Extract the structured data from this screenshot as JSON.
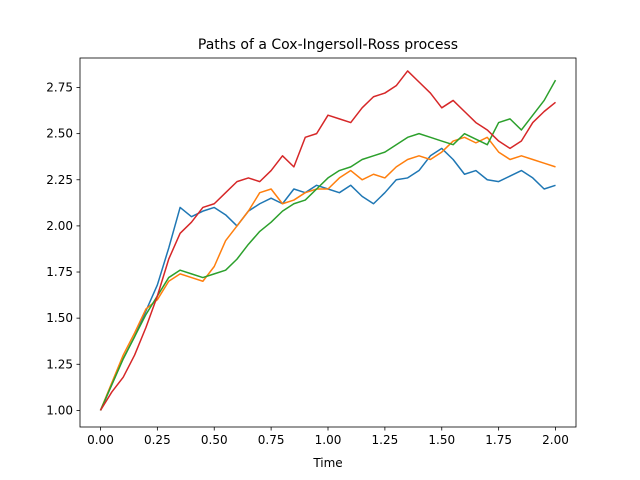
{
  "chart_data": {
    "type": "line",
    "title": "Paths of a Cox-Ingersoll-Ross process",
    "xlabel": "Time",
    "ylabel": "",
    "xlim": [
      -0.09,
      2.09
    ],
    "ylim": [
      0.91,
      2.91
    ],
    "grid": false,
    "legend": "none",
    "x_ticks": [
      {
        "value": 0.0,
        "label": "0.00"
      },
      {
        "value": 0.25,
        "label": "0.25"
      },
      {
        "value": 0.5,
        "label": "0.50"
      },
      {
        "value": 0.75,
        "label": "0.75"
      },
      {
        "value": 1.0,
        "label": "1.00"
      },
      {
        "value": 1.25,
        "label": "1.25"
      },
      {
        "value": 1.5,
        "label": "1.50"
      },
      {
        "value": 1.75,
        "label": "1.75"
      },
      {
        "value": 2.0,
        "label": "2.00"
      }
    ],
    "y_ticks": [
      {
        "value": 1.0,
        "label": "1.00"
      },
      {
        "value": 1.25,
        "label": "1.25"
      },
      {
        "value": 1.5,
        "label": "1.50"
      },
      {
        "value": 1.75,
        "label": "1.75"
      },
      {
        "value": 2.0,
        "label": "2.00"
      },
      {
        "value": 2.25,
        "label": "2.25"
      },
      {
        "value": 2.5,
        "label": "2.50"
      },
      {
        "value": 2.75,
        "label": "2.75"
      }
    ],
    "series": [
      {
        "color": "#1f77b4",
        "x": [
          0.0,
          0.05,
          0.1,
          0.15,
          0.2,
          0.25,
          0.3,
          0.35,
          0.4,
          0.45,
          0.5,
          0.55,
          0.6,
          0.65,
          0.7,
          0.75,
          0.8,
          0.85,
          0.9,
          0.95,
          1.0,
          1.05,
          1.1,
          1.15,
          1.2,
          1.25,
          1.3,
          1.35,
          1.4,
          1.45,
          1.5,
          1.55,
          1.6,
          1.65,
          1.7,
          1.75,
          1.8,
          1.85,
          1.9,
          1.95,
          2.0
        ],
        "y": [
          1.0,
          1.14,
          1.28,
          1.4,
          1.54,
          1.68,
          1.88,
          2.1,
          2.05,
          2.08,
          2.1,
          2.06,
          2.0,
          2.08,
          2.12,
          2.15,
          2.12,
          2.2,
          2.18,
          2.22,
          2.2,
          2.18,
          2.22,
          2.16,
          2.12,
          2.18,
          2.25,
          2.26,
          2.3,
          2.38,
          2.42,
          2.36,
          2.28,
          2.3,
          2.25,
          2.24,
          2.27,
          2.3,
          2.26,
          2.2,
          2.22
        ]
      },
      {
        "color": "#ff7f0e",
        "x": [
          0.0,
          0.05,
          0.1,
          0.15,
          0.2,
          0.25,
          0.3,
          0.35,
          0.4,
          0.45,
          0.5,
          0.55,
          0.6,
          0.65,
          0.7,
          0.75,
          0.8,
          0.85,
          0.9,
          0.95,
          1.0,
          1.05,
          1.1,
          1.15,
          1.2,
          1.25,
          1.3,
          1.35,
          1.4,
          1.45,
          1.5,
          1.55,
          1.6,
          1.65,
          1.7,
          1.75,
          1.8,
          1.85,
          1.9,
          1.95,
          2.0
        ],
        "y": [
          1.0,
          1.15,
          1.3,
          1.42,
          1.55,
          1.6,
          1.7,
          1.74,
          1.72,
          1.7,
          1.78,
          1.92,
          2.0,
          2.08,
          2.18,
          2.2,
          2.12,
          2.14,
          2.18,
          2.2,
          2.2,
          2.26,
          2.3,
          2.25,
          2.28,
          2.26,
          2.32,
          2.36,
          2.38,
          2.36,
          2.4,
          2.46,
          2.48,
          2.45,
          2.48,
          2.4,
          2.36,
          2.38,
          2.36,
          2.34,
          2.32
        ]
      },
      {
        "color": "#2ca02c",
        "x": [
          0.0,
          0.05,
          0.1,
          0.15,
          0.2,
          0.25,
          0.3,
          0.35,
          0.4,
          0.45,
          0.5,
          0.55,
          0.6,
          0.65,
          0.7,
          0.75,
          0.8,
          0.85,
          0.9,
          0.95,
          1.0,
          1.05,
          1.1,
          1.15,
          1.2,
          1.25,
          1.3,
          1.35,
          1.4,
          1.45,
          1.5,
          1.55,
          1.6,
          1.65,
          1.7,
          1.75,
          1.8,
          1.85,
          1.9,
          1.95,
          2.0
        ],
        "y": [
          1.0,
          1.14,
          1.28,
          1.4,
          1.52,
          1.62,
          1.72,
          1.76,
          1.74,
          1.72,
          1.74,
          1.76,
          1.82,
          1.9,
          1.97,
          2.02,
          2.08,
          2.12,
          2.14,
          2.2,
          2.26,
          2.3,
          2.32,
          2.36,
          2.38,
          2.4,
          2.44,
          2.48,
          2.5,
          2.48,
          2.46,
          2.44,
          2.5,
          2.47,
          2.44,
          2.56,
          2.58,
          2.52,
          2.6,
          2.68,
          2.79
        ]
      },
      {
        "color": "#d62728",
        "x": [
          0.0,
          0.05,
          0.1,
          0.15,
          0.2,
          0.25,
          0.3,
          0.35,
          0.4,
          0.45,
          0.5,
          0.55,
          0.6,
          0.65,
          0.7,
          0.75,
          0.8,
          0.85,
          0.9,
          0.95,
          1.0,
          1.05,
          1.1,
          1.15,
          1.2,
          1.25,
          1.3,
          1.35,
          1.4,
          1.45,
          1.5,
          1.55,
          1.6,
          1.65,
          1.7,
          1.75,
          1.8,
          1.85,
          1.9,
          1.95,
          2.0
        ],
        "y": [
          1.0,
          1.1,
          1.18,
          1.3,
          1.45,
          1.62,
          1.82,
          1.96,
          2.02,
          2.1,
          2.12,
          2.18,
          2.24,
          2.26,
          2.24,
          2.3,
          2.38,
          2.32,
          2.48,
          2.5,
          2.6,
          2.58,
          2.56,
          2.64,
          2.7,
          2.72,
          2.76,
          2.84,
          2.78,
          2.72,
          2.64,
          2.68,
          2.62,
          2.56,
          2.52,
          2.46,
          2.42,
          2.46,
          2.56,
          2.62,
          2.67
        ]
      }
    ]
  }
}
